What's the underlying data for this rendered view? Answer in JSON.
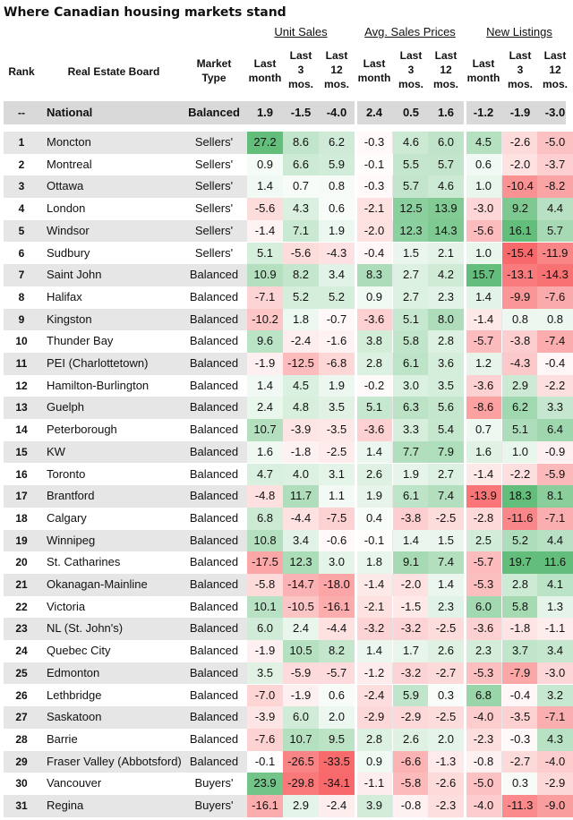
{
  "title": "Where Canadian housing markets stand",
  "colors": {
    "positive": "#63be7b",
    "negative": "#f8696b",
    "neutral": "#ffffff",
    "row_band": "#e6e6e6",
    "national_band": "#d9d9d9"
  },
  "chart_data": {
    "type": "table",
    "title": "Where Canadian housing markets stand",
    "column_groups": [
      "Unit Sales",
      "Avg. Sales Prices",
      "New Listings"
    ],
    "headers": {
      "rank": "Rank",
      "board": "Real Estate Board",
      "market_type": "Market\nType",
      "last_month": "Last\nmonth",
      "last_3": "Last\n3\nmos.",
      "last_12": "Last\n12\nmos."
    },
    "national": {
      "rank": "--",
      "board": "National",
      "type": "Balanced",
      "values": [
        1.9,
        -1.5,
        -4.0,
        2.4,
        0.5,
        1.6,
        -1.2,
        -1.9,
        -3.0
      ]
    },
    "rows": [
      {
        "rank": "1",
        "board": "Moncton",
        "type": "Sellers'",
        "values": [
          27.2,
          8.6,
          6.2,
          -0.3,
          4.6,
          6.0,
          4.5,
          -2.6,
          -5.0
        ]
      },
      {
        "rank": "2",
        "board": "Montreal",
        "type": "Sellers'",
        "values": [
          0.9,
          6.6,
          5.9,
          -0.1,
          5.5,
          5.7,
          0.6,
          -2.0,
          -3.7
        ]
      },
      {
        "rank": "3",
        "board": "Ottawa",
        "type": "Sellers'",
        "values": [
          1.4,
          0.7,
          0.8,
          -0.3,
          5.7,
          4.6,
          1.0,
          -10.4,
          -8.2
        ]
      },
      {
        "rank": "4",
        "board": "London",
        "type": "Sellers'",
        "values": [
          -5.6,
          4.3,
          0.6,
          -2.1,
          12.5,
          13.9,
          -3.0,
          9.2,
          4.4
        ]
      },
      {
        "rank": "5",
        "board": "Windsor",
        "type": "Sellers'",
        "values": [
          -1.4,
          7.1,
          1.9,
          -2.0,
          12.3,
          14.3,
          -5.6,
          16.1,
          5.7
        ]
      },
      {
        "rank": "6",
        "board": "Sudbury",
        "type": "Sellers'",
        "values": [
          5.1,
          -5.6,
          -4.3,
          -0.4,
          1.5,
          2.1,
          1.0,
          -15.4,
          -11.9
        ]
      },
      {
        "rank": "7",
        "board": "Saint John",
        "type": "Balanced",
        "values": [
          10.9,
          8.2,
          3.4,
          8.3,
          2.7,
          4.2,
          15.7,
          -13.1,
          -14.3
        ]
      },
      {
        "rank": "8",
        "board": "Halifax",
        "type": "Balanced",
        "values": [
          -7.1,
          5.2,
          5.2,
          0.9,
          2.7,
          2.3,
          1.4,
          -9.9,
          -7.6
        ]
      },
      {
        "rank": "9",
        "board": "Kingston",
        "type": "Balanced",
        "values": [
          -10.2,
          1.8,
          -0.7,
          -3.6,
          5.1,
          8.0,
          -1.4,
          0.8,
          0.8
        ]
      },
      {
        "rank": "10",
        "board": "Thunder Bay",
        "type": "Balanced",
        "values": [
          9.6,
          -2.4,
          -1.6,
          3.8,
          5.8,
          2.8,
          -5.7,
          -3.8,
          -7.4
        ]
      },
      {
        "rank": "11",
        "board": "PEI (Charlottetown)",
        "type": "Balanced",
        "values": [
          -1.9,
          -12.5,
          -6.8,
          2.8,
          6.1,
          3.6,
          1.2,
          -4.3,
          -0.4
        ]
      },
      {
        "rank": "12",
        "board": "Hamilton-Burlington",
        "type": "Balanced",
        "values": [
          1.4,
          4.5,
          1.9,
          -0.2,
          3.0,
          3.5,
          -3.6,
          2.9,
          -2.2
        ]
      },
      {
        "rank": "13",
        "board": "Guelph",
        "type": "Balanced",
        "values": [
          2.4,
          4.8,
          3.5,
          5.1,
          6.3,
          5.6,
          -8.6,
          6.2,
          3.3
        ]
      },
      {
        "rank": "14",
        "board": "Peterborough",
        "type": "Balanced",
        "values": [
          10.7,
          -3.9,
          -3.5,
          -3.6,
          3.3,
          5.4,
          0.7,
          5.1,
          6.4
        ]
      },
      {
        "rank": "15",
        "board": "KW",
        "type": "Balanced",
        "values": [
          1.6,
          -1.8,
          -2.5,
          1.4,
          7.7,
          7.9,
          1.6,
          1.0,
          -0.9
        ]
      },
      {
        "rank": "16",
        "board": "Toronto",
        "type": "Balanced",
        "values": [
          4.7,
          4.0,
          3.1,
          2.6,
          1.9,
          2.7,
          -1.4,
          -2.2,
          -5.9
        ]
      },
      {
        "rank": "17",
        "board": "Brantford",
        "type": "Balanced",
        "values": [
          -4.8,
          11.7,
          1.1,
          1.9,
          6.1,
          7.4,
          -13.9,
          18.3,
          8.1
        ]
      },
      {
        "rank": "18",
        "board": "Calgary",
        "type": "Balanced",
        "values": [
          6.8,
          -4.4,
          -7.5,
          0.4,
          -3.8,
          -2.5,
          -2.8,
          -11.6,
          -7.1
        ]
      },
      {
        "rank": "19",
        "board": "Winnipeg",
        "type": "Balanced",
        "values": [
          10.8,
          3.4,
          -0.6,
          -0.1,
          1.4,
          1.5,
          2.5,
          5.2,
          4.4
        ]
      },
      {
        "rank": "20",
        "board": "St. Catharines",
        "type": "Balanced",
        "values": [
          -17.5,
          12.3,
          3.0,
          1.8,
          9.1,
          7.4,
          -5.7,
          19.7,
          11.6
        ]
      },
      {
        "rank": "21",
        "board": "Okanagan-Mainline",
        "type": "Balanced",
        "values": [
          -5.8,
          -14.7,
          -18.0,
          -1.4,
          -2.0,
          1.4,
          -5.3,
          2.8,
          4.1
        ]
      },
      {
        "rank": "22",
        "board": "Victoria",
        "type": "Balanced",
        "values": [
          10.1,
          -10.5,
          -16.1,
          -2.1,
          -1.5,
          2.3,
          6.0,
          5.8,
          1.3
        ]
      },
      {
        "rank": "23",
        "board": "NL (St. John's)",
        "type": "Balanced",
        "values": [
          6.0,
          2.4,
          -4.4,
          -3.2,
          -3.2,
          -2.5,
          -3.6,
          -1.8,
          -1.1
        ]
      },
      {
        "rank": "24",
        "board": "Quebec City",
        "type": "Balanced",
        "values": [
          -1.9,
          10.5,
          8.2,
          1.4,
          1.7,
          2.6,
          2.3,
          3.7,
          3.4
        ]
      },
      {
        "rank": "25",
        "board": "Edmonton",
        "type": "Balanced",
        "values": [
          3.5,
          -5.9,
          -5.7,
          -1.2,
          -3.2,
          -2.7,
          -5.3,
          -7.9,
          -3.0
        ]
      },
      {
        "rank": "26",
        "board": "Lethbridge",
        "type": "Balanced",
        "values": [
          -7.0,
          -1.9,
          0.6,
          -2.4,
          5.9,
          0.3,
          6.8,
          -0.4,
          3.2
        ]
      },
      {
        "rank": "27",
        "board": "Saskatoon",
        "type": "Balanced",
        "values": [
          -3.9,
          6.0,
          2.0,
          -2.9,
          -2.9,
          -2.5,
          -4.0,
          -3.5,
          -7.1
        ]
      },
      {
        "rank": "28",
        "board": "Barrie",
        "type": "Balanced",
        "values": [
          -7.6,
          10.7,
          9.5,
          2.8,
          2.6,
          2.0,
          -2.3,
          -0.3,
          4.3
        ]
      },
      {
        "rank": "29",
        "board": "Fraser Valley (Abbotsford)",
        "type": "Balanced",
        "values": [
          -0.1,
          -26.5,
          -33.5,
          0.9,
          -6.6,
          -1.3,
          -0.8,
          -2.7,
          -4.0
        ]
      },
      {
        "rank": "30",
        "board": "Vancouver",
        "type": "Buyers'",
        "values": [
          23.9,
          -29.8,
          -34.1,
          -1.1,
          -5.8,
          -2.6,
          -5.0,
          0.3,
          -2.9
        ]
      },
      {
        "rank": "31",
        "board": "Regina",
        "type": "Buyers'",
        "values": [
          -16.1,
          2.9,
          -2.4,
          3.9,
          -0.8,
          -2.3,
          -4.0,
          -11.3,
          -9.0
        ]
      }
    ]
  }
}
